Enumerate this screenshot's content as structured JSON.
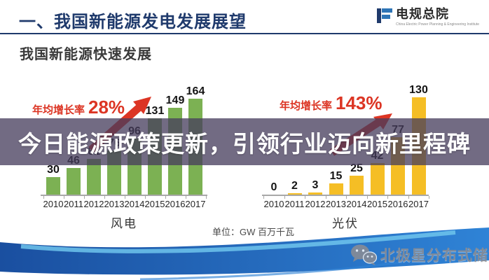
{
  "colors": {
    "navy": "#1F3A6C",
    "red": "#DC3524",
    "green": "#7CB153",
    "yellow": "#F5BE25",
    "band_bg": "rgba(70,61,92,0.76)",
    "swoosh_dark": "#1A4FA0",
    "swoosh_mid": "#2F83D6",
    "swoosh_light": "#6FC4EC",
    "watermark_gray": "#8D8D92",
    "axis_gray": "#A8A8A8"
  },
  "header": {
    "title": "一、我国新能源发电发展展望",
    "logo_text": "电规总院",
    "logo_subtext": "China Electric Power Planning & Engineering Institute"
  },
  "subtitle": "我国新能源快速发展",
  "banner": {
    "text": "今日能源政策更新，引领行业迈向新里程碑"
  },
  "unit_note": "单位：GW  百万千瓦",
  "watermark": {
    "icon": "wechat-icon",
    "text": "北极星分布式储能"
  },
  "chart_data": [
    {
      "type": "bar",
      "title": "风电",
      "growth_label": "年均增长率",
      "growth_rate": "28%",
      "categories": [
        "2010",
        "2011",
        "2012",
        "2013",
        "2014",
        "2015",
        "2016",
        "2017"
      ],
      "values": [
        30,
        46,
        61,
        76,
        96,
        131,
        149,
        164
      ],
      "bar_color": "#7CB153",
      "unit": "GW",
      "ylim": [
        0,
        170
      ],
      "grid": false,
      "legend": false
    },
    {
      "type": "bar",
      "title": "光伏",
      "growth_label": "年均增长率",
      "growth_rate": "143%",
      "categories": [
        "2010",
        "2011",
        "2012",
        "2013",
        "2014",
        "2015",
        "2016",
        "2017"
      ],
      "values": [
        0,
        2,
        3,
        15,
        25,
        42,
        77,
        130
      ],
      "bar_color": "#F5BE25",
      "unit": "GW",
      "ylim": [
        0,
        140
      ],
      "grid": false,
      "legend": false
    }
  ]
}
